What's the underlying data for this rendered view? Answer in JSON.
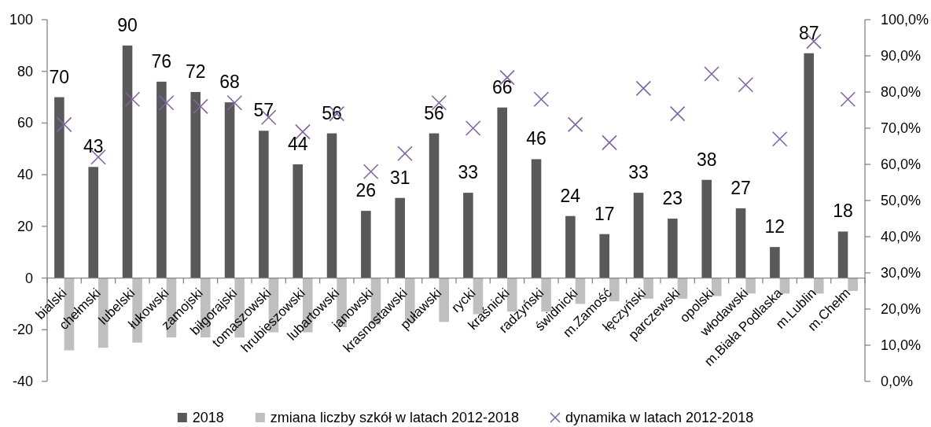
{
  "chart_data": {
    "type": "bar",
    "categories": [
      "bialski",
      "chełmski",
      "lubelski",
      "łukowski",
      "zamojski",
      "biłgorajski",
      "tomaszowski",
      "hrubieszowski",
      "lubartowski",
      "janowski",
      "krasnostawski",
      "puławski",
      "rycki",
      "kraśnicki",
      "radzyński",
      "świdnicki",
      "m.Zamość",
      "łęczyński",
      "parczewski",
      "opolski",
      "włodawski",
      "m.Biała Podlaska",
      "m.Lublin",
      "m.Chełm"
    ],
    "series": [
      {
        "name": "2018",
        "color": "#595959",
        "values": [
          70,
          43,
          90,
          76,
          72,
          68,
          57,
          44,
          56,
          26,
          31,
          56,
          33,
          66,
          46,
          24,
          17,
          33,
          23,
          38,
          27,
          12,
          87,
          18
        ],
        "value_labels": [
          "70",
          "43",
          "90",
          "76",
          "72",
          "68",
          "57",
          "44",
          "56",
          "26",
          "31",
          "56",
          "33",
          "66",
          "46",
          "24",
          "17",
          "33",
          "23",
          "38",
          "27",
          "12",
          "87",
          "18"
        ]
      },
      {
        "name": "zmiana liczby szkół w latach 2012-2018",
        "color": "#bfbfbf",
        "values": [
          -28,
          -27,
          -25,
          -23,
          -23,
          -23,
          -21,
          -21,
          -19,
          -18,
          -17,
          -17,
          -14,
          -13,
          -13,
          -10,
          -9,
          -8,
          -8,
          -7,
          -6,
          -6,
          -6,
          -5
        ]
      },
      {
        "name": "dynamika w latach 2012-2018",
        "type": "scatter",
        "axis": "y2",
        "color": "#8064a2",
        "marker": "cross",
        "values": [
          71,
          62,
          78,
          77,
          76,
          77,
          73,
          69,
          74,
          58,
          63,
          77,
          70,
          84,
          78,
          71,
          66,
          81,
          74,
          85,
          82,
          67,
          94,
          78
        ]
      }
    ],
    "ylim": [
      -40,
      100
    ],
    "yticks": [
      -40,
      -20,
      0,
      20,
      40,
      60,
      80,
      100
    ],
    "y2lim": [
      0,
      100
    ],
    "y2ticks": [
      {
        "value": 0,
        "label": "0,0%"
      },
      {
        "value": 10,
        "label": "10,0%"
      },
      {
        "value": 20,
        "label": "20,0%"
      },
      {
        "value": 30,
        "label": "30,0%"
      },
      {
        "value": 40,
        "label": "40,0%"
      },
      {
        "value": 50,
        "label": "50,0%"
      },
      {
        "value": 60,
        "label": "60,0%"
      },
      {
        "value": 70,
        "label": "70,0%"
      },
      {
        "value": 80,
        "label": "80,0%"
      },
      {
        "value": 90,
        "label": "90,0%"
      },
      {
        "value": 100,
        "label": "100,0%"
      }
    ],
    "legend": "bottom"
  }
}
